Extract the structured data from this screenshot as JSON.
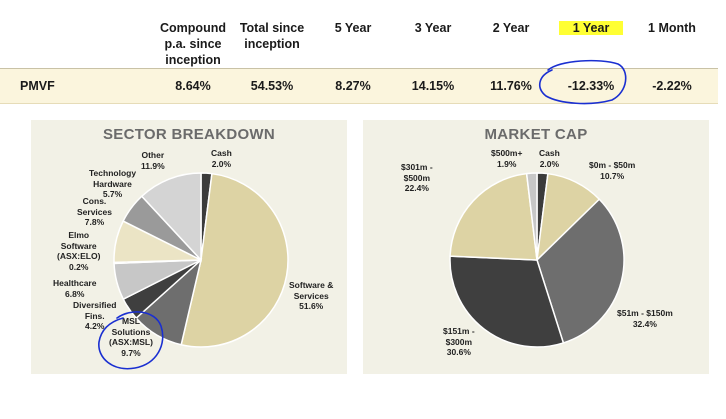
{
  "performance": {
    "headers": [
      "Compound\np.a. since\ninception",
      "Total since\ninception",
      "5 Year",
      "3 Year",
      "2 Year",
      "1 Year",
      "1 Month"
    ],
    "row": {
      "label": "PMVF",
      "values": [
        "8.64%",
        "54.53%",
        "8.27%",
        "14.15%",
        "11.76%",
        "-12.33%",
        "-2.22%"
      ]
    }
  },
  "colors": {
    "highlight": "#ffff33",
    "annotation": "#1a2fd1",
    "panel_bg": "#f2f1e6",
    "row_bg": "#fbf5dd"
  },
  "chart_data": [
    {
      "type": "pie",
      "title": "SECTOR BREAKDOWN",
      "slices": [
        {
          "label": "Cash",
          "value": 2.0,
          "display": "Cash\n2.0%",
          "color": "#3b3b3b"
        },
        {
          "label": "Software & Services",
          "value": 51.6,
          "display": "Software &\nServices\n51.6%",
          "color": "#ddd3a4"
        },
        {
          "label": "MSL Solutions (ASX:MSL)",
          "value": 9.7,
          "display": "MSL\nSolutions\n(ASX:MSL)\n9.7%",
          "color": "#6e6e6e"
        },
        {
          "label": "Diversified Fins.",
          "value": 4.2,
          "display": "Diversified\nFins.\n4.2%",
          "color": "#3f3f3f"
        },
        {
          "label": "Healthcare",
          "value": 6.8,
          "display": "Healthcare\n6.8%",
          "color": "#c7c7c7"
        },
        {
          "label": "Elmo Software (ASX:ELO)",
          "value": 0.2,
          "display": "Elmo\nSoftware\n(ASX:ELO)\n0.2%",
          "color": "#555555"
        },
        {
          "label": "Cons. Services",
          "value": 7.8,
          "display": "Cons.\nServices\n7.8%",
          "color": "#ebe4c5"
        },
        {
          "label": "Technology Hardware",
          "value": 5.7,
          "display": "Technology\nHardware\n5.7%",
          "color": "#9a9a9a"
        },
        {
          "label": "Other",
          "value": 11.9,
          "display": "Other\n11.9%",
          "color": "#d4d4d4"
        }
      ]
    },
    {
      "type": "pie",
      "title": "MARKET CAP",
      "slices": [
        {
          "label": "Cash",
          "value": 2.0,
          "display": "Cash\n2.0%",
          "color": "#3b3b3b"
        },
        {
          "label": "$0m - $50m",
          "value": 10.7,
          "display": "$0m - $50m\n10.7%",
          "color": "#ddd3a4"
        },
        {
          "label": "$51m - $150m",
          "value": 32.4,
          "display": "$51m - $150m\n32.4%",
          "color": "#6e6e6e"
        },
        {
          "label": "$151m - $300m",
          "value": 30.6,
          "display": "$151m -\n$300m\n30.6%",
          "color": "#3f3f3f"
        },
        {
          "label": "$301m - $500m",
          "value": 22.4,
          "display": "$301m -\n$500m\n22.4%",
          "color": "#ddd3a4"
        },
        {
          "label": "$500m+",
          "value": 1.9,
          "display": "$500m+\n1.9%",
          "color": "#c7c7c7"
        }
      ]
    }
  ]
}
